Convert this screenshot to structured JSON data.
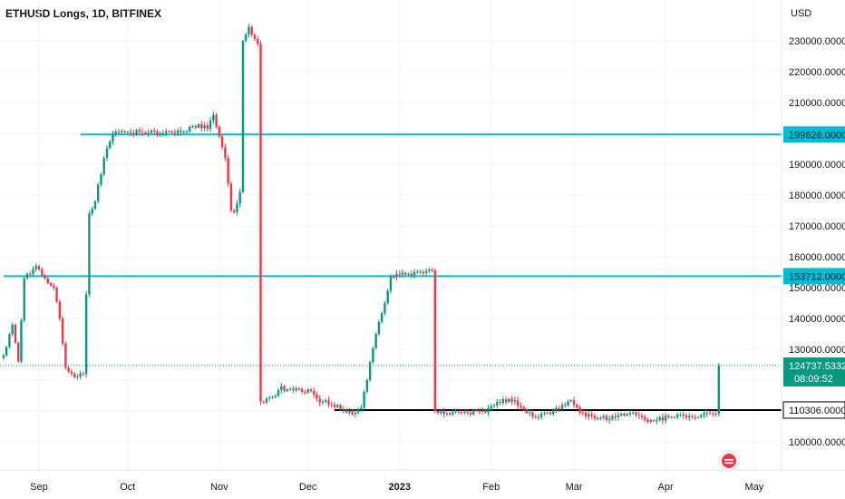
{
  "chart_data": {
    "type": "candlestick",
    "title": "ETHUSD Longs, 1D, BITFINEX",
    "currency": "USD",
    "ylim": [
      93000,
      238000
    ],
    "y_ticks": [
      "100000.0000",
      "110000.0000",
      "120000.0000",
      "130000.0000",
      "140000.0000",
      "150000.0000",
      "160000.0000",
      "170000.0000",
      "180000.0000",
      "190000.0000",
      "200000.0000",
      "210000.0000",
      "220000.0000",
      "230000.0000"
    ],
    "x_ticks": [
      {
        "label": "Sep",
        "date": "2022-09-01"
      },
      {
        "label": "Oct",
        "date": "2022-10-01"
      },
      {
        "label": "Nov",
        "date": "2022-11-01"
      },
      {
        "label": "Dec",
        "date": "2022-12-01"
      },
      {
        "label": "2023",
        "date": "2023-01-01"
      },
      {
        "label": "Feb",
        "date": "2023-02-01"
      },
      {
        "label": "Mar",
        "date": "2023-03-01"
      },
      {
        "label": "Apr",
        "date": "2023-04-01"
      },
      {
        "label": "May",
        "date": "2023-05-01"
      }
    ],
    "horizontal_levels": [
      {
        "value": 199626,
        "label": "199626.0000",
        "color": "#00bcd4",
        "start_date": "2022-09-15"
      },
      {
        "value": 153712,
        "label": "153712.0000",
        "color": "#00bcd4",
        "start_date": "2022-08-20"
      },
      {
        "value": 110306,
        "label": "110306.0000",
        "color": "#000000",
        "start_date": "2022-12-10"
      }
    ],
    "last_price": {
      "value": 124737.5332,
      "label": "124737.5332",
      "countdown": "08:09:52",
      "color": "#089981"
    },
    "colors": {
      "up": "#089981",
      "down": "#f23645",
      "grid": "#f0f3fa"
    },
    "keyframes": [
      [
        "2022-08-20",
        128000
      ],
      [
        "2022-08-23",
        138000
      ],
      [
        "2022-08-25",
        126000
      ],
      [
        "2022-08-27",
        153000
      ],
      [
        "2022-08-31",
        157000
      ],
      [
        "2022-09-03",
        153000
      ],
      [
        "2022-09-06",
        150000
      ],
      [
        "2022-09-08",
        140000
      ],
      [
        "2022-09-10",
        124000
      ],
      [
        "2022-09-13",
        121000
      ],
      [
        "2022-09-16",
        122000
      ],
      [
        "2022-09-18",
        174000
      ],
      [
        "2022-09-20",
        178000
      ],
      [
        "2022-09-23",
        192000
      ],
      [
        "2022-09-26",
        199700
      ],
      [
        "2022-10-05",
        200500
      ],
      [
        "2022-10-12",
        200000
      ],
      [
        "2022-10-20",
        200500
      ],
      [
        "2022-10-25",
        203000
      ],
      [
        "2022-10-28",
        201500
      ],
      [
        "2022-10-30",
        206000
      ],
      [
        "2022-11-01",
        199000
      ],
      [
        "2022-11-03",
        192000
      ],
      [
        "2022-11-05",
        175000
      ],
      [
        "2022-11-06",
        174500
      ],
      [
        "2022-11-08",
        181000
      ],
      [
        "2022-11-09",
        230000
      ],
      [
        "2022-11-11",
        234500
      ],
      [
        "2022-11-14",
        229000
      ],
      [
        "2022-11-15",
        113000
      ],
      [
        "2022-11-17",
        114000
      ],
      [
        "2022-11-20",
        115000
      ],
      [
        "2022-11-22",
        118000
      ],
      [
        "2022-11-23",
        116500
      ],
      [
        "2022-11-28",
        117000
      ],
      [
        "2022-12-02",
        116500
      ],
      [
        "2022-12-04",
        114000
      ],
      [
        "2022-12-06",
        113000
      ],
      [
        "2022-12-09",
        112000
      ],
      [
        "2022-12-13",
        110500
      ],
      [
        "2022-12-16",
        109000
      ],
      [
        "2022-12-19",
        111000
      ],
      [
        "2022-12-21",
        120000
      ],
      [
        "2022-12-24",
        135000
      ],
      [
        "2022-12-27",
        145000
      ],
      [
        "2022-12-29",
        153500
      ],
      [
        "2023-01-04",
        154500
      ],
      [
        "2023-01-08",
        155000
      ],
      [
        "2023-01-12",
        155500
      ],
      [
        "2023-01-13",
        110000
      ],
      [
        "2023-01-16",
        109000
      ],
      [
        "2023-01-22",
        109500
      ],
      [
        "2023-01-30",
        109500
      ],
      [
        "2023-02-03",
        113000
      ],
      [
        "2023-02-09",
        113500
      ],
      [
        "2023-02-12",
        110500
      ],
      [
        "2023-02-16",
        108000
      ],
      [
        "2023-02-21",
        109000
      ],
      [
        "2023-02-25",
        112000
      ],
      [
        "2023-02-28",
        113500
      ],
      [
        "2023-03-03",
        109500
      ],
      [
        "2023-03-09",
        107500
      ],
      [
        "2023-03-15",
        108000
      ],
      [
        "2023-03-19",
        109000
      ],
      [
        "2023-03-23",
        108500
      ],
      [
        "2023-03-26",
        106500
      ],
      [
        "2023-03-29",
        107000
      ],
      [
        "2023-04-02",
        108000
      ],
      [
        "2023-04-07",
        108500
      ],
      [
        "2023-04-12",
        108000
      ],
      [
        "2023-04-15",
        109500
      ],
      [
        "2023-04-18",
        109000
      ],
      [
        "2023-04-19",
        124737
      ]
    ]
  },
  "header": {
    "title": "ETHUSD Longs, 1D, BITFINEX"
  },
  "axis": {
    "currency": "USD"
  },
  "logo": {
    "name": "tradingview-logo-icon"
  }
}
